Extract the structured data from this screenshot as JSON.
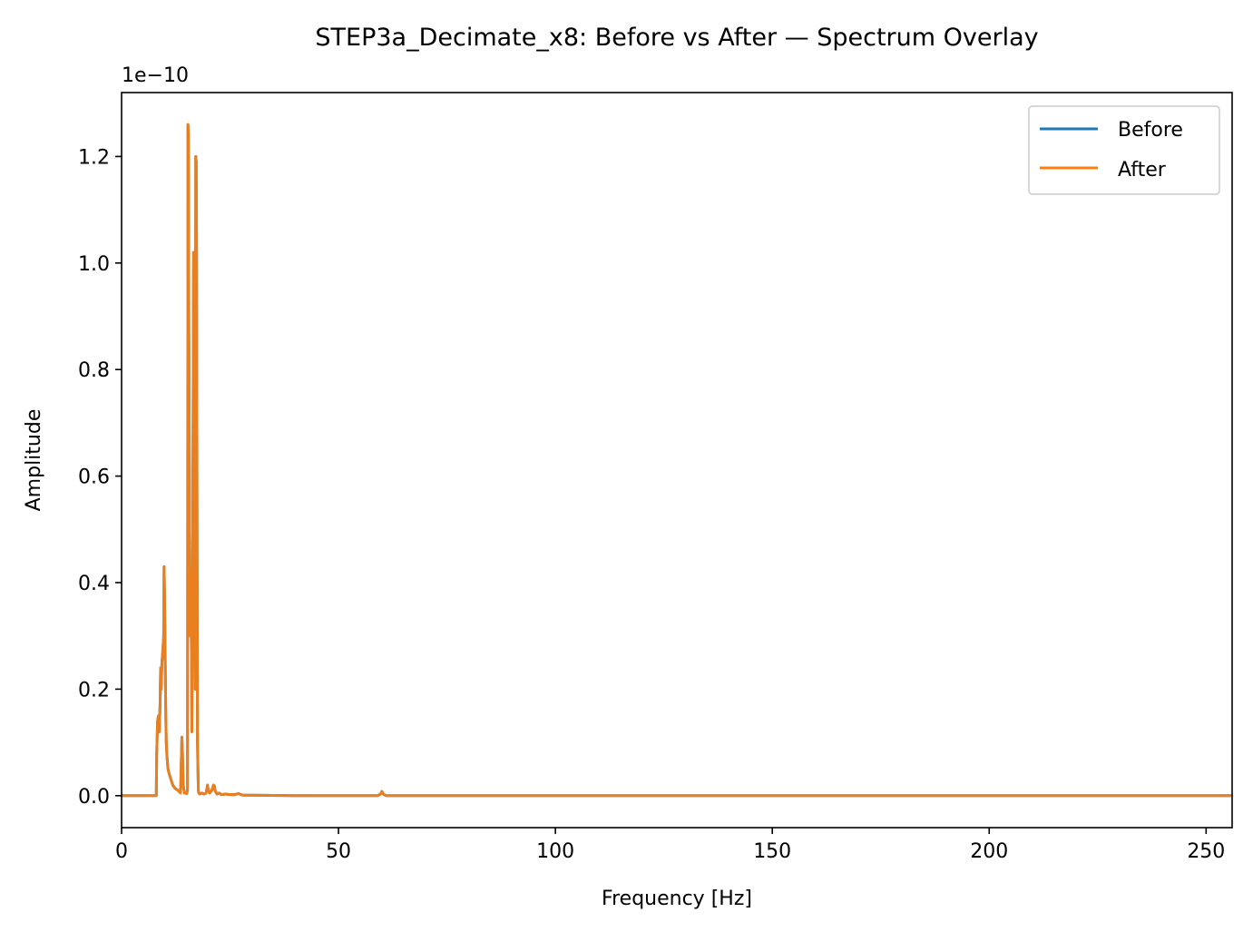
{
  "chart_data": {
    "type": "line",
    "title": "STEP3a_Decimate_x8: Before vs After — Spectrum Overlay",
    "xlabel": "Frequency [Hz]",
    "ylabel": "Amplitude",
    "offset_text": "1e−10",
    "y_scale": 1e-10,
    "xlim": [
      0,
      256
    ],
    "ylim": [
      -0.06,
      1.32
    ],
    "xticks": [
      0,
      50,
      100,
      150,
      200,
      250
    ],
    "xtick_labels": [
      "0",
      "50",
      "100",
      "150",
      "200",
      "250"
    ],
    "yticks": [
      0.0,
      0.2,
      0.4,
      0.6,
      0.8,
      1.0,
      1.2
    ],
    "ytick_labels": [
      "0.0",
      "0.2",
      "0.4",
      "0.6",
      "0.8",
      "1.0",
      "1.2"
    ],
    "legend_position": "top-right",
    "series": [
      {
        "name": "Before",
        "color": "#1f77b4",
        "x": [
          0,
          8.0,
          8.1,
          8.3,
          8.5,
          8.7,
          8.9,
          9.0,
          9.1,
          9.3,
          9.5,
          9.7,
          9.8,
          9.9,
          10.0,
          10.1,
          10.2,
          10.3,
          10.5,
          10.7,
          11.0,
          11.4,
          11.8,
          12.2,
          12.6,
          13.0,
          13.6,
          13.9,
          14.0,
          14.2,
          14.5,
          15.0,
          15.2,
          15.3,
          15.4,
          15.5,
          15.6,
          15.8,
          16.0,
          16.2,
          16.4,
          16.6,
          16.8,
          17.0,
          17.1,
          17.2,
          17.3,
          17.4,
          17.5,
          17.6,
          17.7,
          17.8,
          18.0,
          18.5,
          19.0,
          19.5,
          19.8,
          20.0,
          20.3,
          20.8,
          21.2,
          21.4,
          21.6,
          22.0,
          22.5,
          23.0,
          24.0,
          25.0,
          26.0,
          27.0,
          27.5,
          28.0,
          30.0,
          35.0,
          40.0,
          50.0,
          59.0,
          59.7,
          60.0,
          60.3,
          61.0,
          70.0,
          100.0,
          150.0,
          200.0,
          256.0
        ],
        "values": [
          0.0,
          0.0,
          0.08,
          0.14,
          0.15,
          0.12,
          0.18,
          0.24,
          0.2,
          0.25,
          0.27,
          0.3,
          0.43,
          0.38,
          0.3,
          0.22,
          0.15,
          0.1,
          0.07,
          0.05,
          0.04,
          0.03,
          0.02,
          0.015,
          0.012,
          0.01,
          0.005,
          0.11,
          0.09,
          0.02,
          0.005,
          0.004,
          0.01,
          1.26,
          1.24,
          0.9,
          0.66,
          0.3,
          0.42,
          0.12,
          0.45,
          1.02,
          0.6,
          0.2,
          1.2,
          1.19,
          1.0,
          0.5,
          0.1,
          0.05,
          0.01,
          0.005,
          0.003,
          0.005,
          0.003,
          0.005,
          0.02,
          0.01,
          0.005,
          0.01,
          0.02,
          0.018,
          0.008,
          0.003,
          0.005,
          0.002,
          0.003,
          0.002,
          0.002,
          0.004,
          0.002,
          0.001,
          0.001,
          0.0005,
          0.0,
          0.0,
          0.0,
          0.003,
          0.008,
          0.003,
          0.0,
          0.0,
          0.0,
          0.0,
          0.0,
          0.0
        ]
      },
      {
        "name": "After",
        "color": "#ff7f0e",
        "x": [
          0,
          8.0,
          8.1,
          8.3,
          8.5,
          8.7,
          8.9,
          9.0,
          9.1,
          9.3,
          9.5,
          9.7,
          9.8,
          9.9,
          10.0,
          10.1,
          10.2,
          10.3,
          10.5,
          10.7,
          11.0,
          11.4,
          11.8,
          12.2,
          12.6,
          13.0,
          13.6,
          13.9,
          14.0,
          14.2,
          14.5,
          15.0,
          15.2,
          15.3,
          15.4,
          15.5,
          15.6,
          15.8,
          16.0,
          16.2,
          16.4,
          16.6,
          16.8,
          17.0,
          17.1,
          17.2,
          17.3,
          17.4,
          17.5,
          17.6,
          17.7,
          17.8,
          18.0,
          18.5,
          19.0,
          19.5,
          19.8,
          20.0,
          20.3,
          20.8,
          21.2,
          21.4,
          21.6,
          22.0,
          22.5,
          23.0,
          24.0,
          25.0,
          26.0,
          27.0,
          27.5,
          28.0,
          30.0,
          35.0,
          40.0,
          50.0,
          59.0,
          59.7,
          60.0,
          60.3,
          61.0,
          70.0,
          100.0,
          150.0,
          200.0,
          256.0
        ],
        "values": [
          0.0,
          0.0,
          0.08,
          0.14,
          0.15,
          0.12,
          0.18,
          0.24,
          0.2,
          0.25,
          0.27,
          0.3,
          0.43,
          0.38,
          0.3,
          0.22,
          0.15,
          0.1,
          0.07,
          0.05,
          0.04,
          0.03,
          0.02,
          0.015,
          0.012,
          0.01,
          0.005,
          0.11,
          0.09,
          0.02,
          0.005,
          0.004,
          0.01,
          1.26,
          1.24,
          0.9,
          0.66,
          0.3,
          0.42,
          0.12,
          0.45,
          1.02,
          0.6,
          0.2,
          1.2,
          1.19,
          1.0,
          0.5,
          0.1,
          0.05,
          0.01,
          0.005,
          0.003,
          0.005,
          0.003,
          0.005,
          0.02,
          0.01,
          0.005,
          0.01,
          0.02,
          0.018,
          0.008,
          0.003,
          0.005,
          0.002,
          0.003,
          0.002,
          0.002,
          0.004,
          0.002,
          0.001,
          0.001,
          0.0005,
          0.0,
          0.0,
          0.0,
          0.003,
          0.008,
          0.003,
          0.0,
          0.0,
          0.0,
          0.0,
          0.0,
          0.0
        ]
      }
    ]
  }
}
